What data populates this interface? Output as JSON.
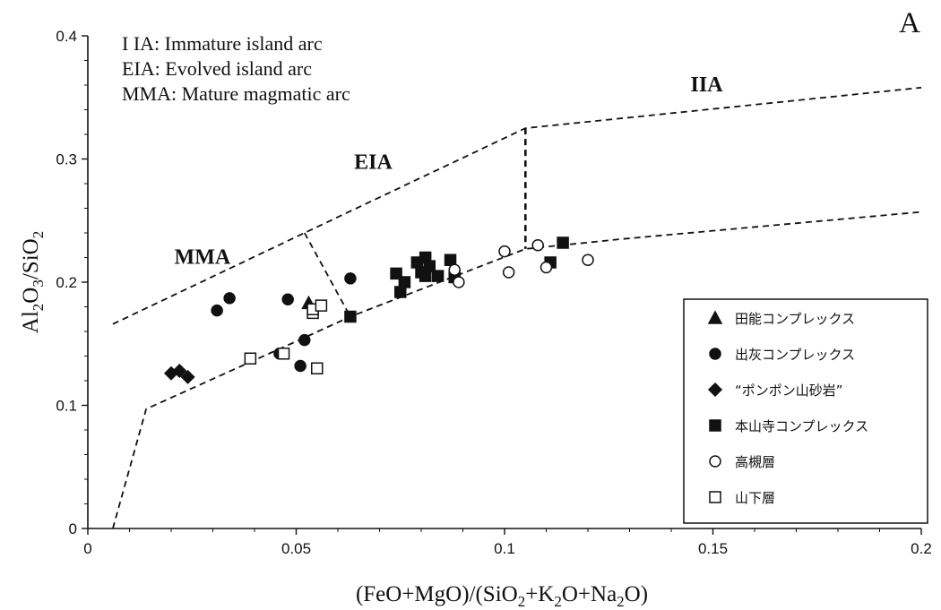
{
  "chart_data": {
    "type": "scatter",
    "panel_label": "A",
    "xlim": [
      0,
      0.2
    ],
    "ylim": [
      0,
      0.4
    ],
    "x_ticks": [
      "0",
      "0.05",
      "0.1",
      "0.15",
      "0.2"
    ],
    "y_ticks": [
      "0",
      "0.1",
      "0.2",
      "0.3",
      "0.4"
    ],
    "xlabel": {
      "parts": [
        {
          "t": "(FeO+MgO)/(SiO"
        },
        {
          "t": "2",
          "sub": true
        },
        {
          "t": "+K"
        },
        {
          "t": "2",
          "sub": true
        },
        {
          "t": "O+Na"
        },
        {
          "t": "2",
          "sub": true
        },
        {
          "t": "O)"
        }
      ]
    },
    "ylabel": {
      "parts": [
        {
          "t": "Al"
        },
        {
          "t": "2",
          "sub": true
        },
        {
          "t": "O"
        },
        {
          "t": "3",
          "sub": true
        },
        {
          "t": "/SiO"
        },
        {
          "t": "2",
          "sub": true
        }
      ]
    },
    "abbreviations": [
      "I IA:  Immature island arc",
      "EIA:  Evolved island arc",
      "MMA:  Mature magmatic arc"
    ],
    "region_labels": [
      {
        "text": "MMA",
        "x": 0.0275,
        "y": 0.215
      },
      {
        "text": "EIA",
        "x": 0.0685,
        "y": 0.292
      },
      {
        "text": "IIA",
        "x": 0.1485,
        "y": 0.355
      }
    ],
    "boundaries": [
      {
        "name": "upper",
        "points": [
          [
            0.006,
            0.166
          ],
          [
            0.052,
            0.24
          ],
          [
            0.105,
            0.325
          ],
          [
            0.2,
            0.358
          ]
        ]
      },
      {
        "name": "lower",
        "points": [
          [
            0.006,
            0.0
          ],
          [
            0.014,
            0.097
          ],
          [
            0.052,
            0.155
          ],
          [
            0.063,
            0.172
          ],
          [
            0.105,
            0.227
          ],
          [
            0.128,
            0.235
          ],
          [
            0.2,
            0.257
          ]
        ]
      },
      {
        "name": "mma-eia",
        "points": [
          [
            0.052,
            0.24
          ],
          [
            0.063,
            0.172
          ]
        ]
      },
      {
        "name": "eia-iia",
        "points": [
          [
            0.105,
            0.325
          ],
          [
            0.105,
            0.227
          ]
        ]
      }
    ],
    "series": [
      {
        "name": "田能コンプレックス",
        "marker": "triangle-filled",
        "points": [
          [
            0.053,
            0.183
          ]
        ]
      },
      {
        "name": "出灰コンプレックス",
        "marker": "circle-filled",
        "points": [
          [
            0.031,
            0.177
          ],
          [
            0.034,
            0.187
          ],
          [
            0.048,
            0.186
          ],
          [
            0.063,
            0.203
          ],
          [
            0.046,
            0.142
          ],
          [
            0.052,
            0.153
          ],
          [
            0.051,
            0.132
          ]
        ]
      },
      {
        "name": "“ポンポン山砂岩”",
        "marker": "diamond-filled",
        "points": [
          [
            0.02,
            0.126
          ],
          [
            0.022,
            0.128
          ],
          [
            0.024,
            0.123
          ]
        ]
      },
      {
        "name": "本山寺コンプレックス",
        "marker": "square-filled",
        "points": [
          [
            0.063,
            0.172
          ],
          [
            0.074,
            0.207
          ],
          [
            0.076,
            0.2
          ],
          [
            0.075,
            0.192
          ],
          [
            0.079,
            0.216
          ],
          [
            0.081,
            0.22
          ],
          [
            0.082,
            0.213
          ],
          [
            0.08,
            0.208
          ],
          [
            0.081,
            0.205
          ],
          [
            0.084,
            0.205
          ],
          [
            0.087,
            0.218
          ],
          [
            0.088,
            0.204
          ],
          [
            0.111,
            0.216
          ],
          [
            0.114,
            0.232
          ]
        ]
      },
      {
        "name": "高槻層",
        "marker": "circle-open",
        "points": [
          [
            0.088,
            0.21
          ],
          [
            0.089,
            0.2
          ],
          [
            0.1,
            0.225
          ],
          [
            0.101,
            0.208
          ],
          [
            0.108,
            0.23
          ],
          [
            0.11,
            0.212
          ],
          [
            0.12,
            0.218
          ]
        ]
      },
      {
        "name": "山下層",
        "marker": "square-open",
        "points": [
          [
            0.039,
            0.138
          ],
          [
            0.047,
            0.142
          ],
          [
            0.054,
            0.175
          ],
          [
            0.054,
            0.178
          ],
          [
            0.056,
            0.181
          ],
          [
            0.055,
            0.13
          ]
        ]
      }
    ]
  }
}
